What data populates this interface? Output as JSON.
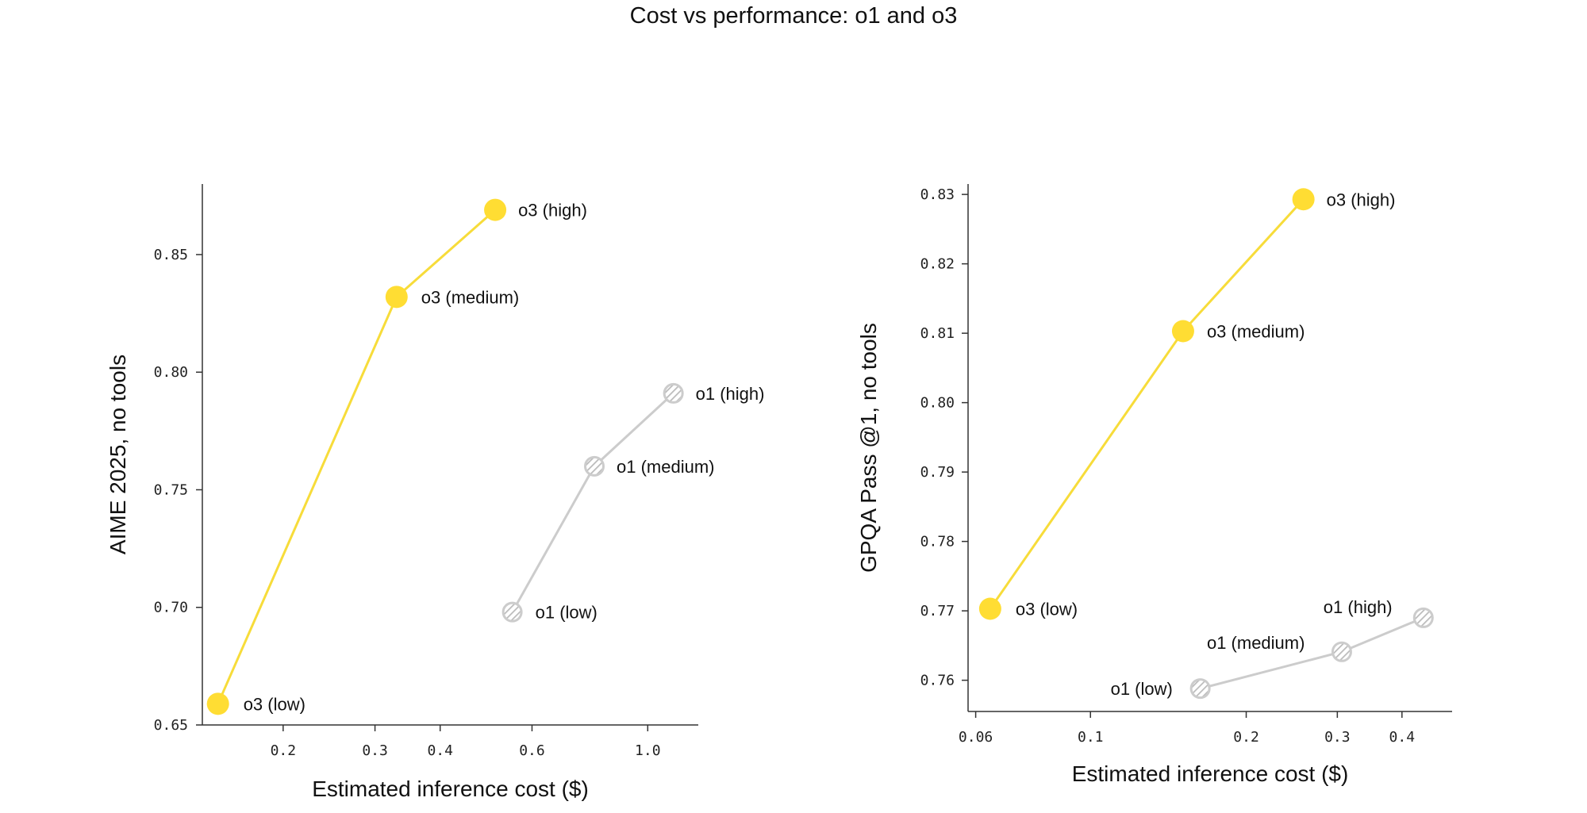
{
  "title": "Cost vs performance: o1 and o3",
  "colors": {
    "o3": "#FFDD33",
    "o3_line": "#F7DC3A",
    "o1": "#CCCCCC",
    "axis": "#333333",
    "text": "#111111"
  },
  "chart_data": [
    {
      "type": "line",
      "xlabel": "Estimated inference cost ($)",
      "ylabel": "AIME 2025, no tools",
      "xscale": "log",
      "xlim": [
        0.14,
        1.25
      ],
      "ylim": [
        0.65,
        0.88
      ],
      "xticks": [
        0.2,
        0.3,
        0.4,
        0.6,
        1.0
      ],
      "xtick_labels": [
        "0.2",
        "0.3",
        "0.4",
        "0.6",
        "1.0"
      ],
      "yticks": [
        0.65,
        0.7,
        0.75,
        0.8,
        0.85
      ],
      "ytick_labels": [
        "0.65",
        "0.70",
        "0.75",
        "0.80",
        "0.85"
      ],
      "series": [
        {
          "key": "o3",
          "points": [
            {
              "x": 0.15,
              "y": 0.659,
              "label": "o3 (low)"
            },
            {
              "x": 0.33,
              "y": 0.832,
              "label": "o3 (medium)"
            },
            {
              "x": 0.51,
              "y": 0.869,
              "label": "o3 (high)"
            }
          ]
        },
        {
          "key": "o1",
          "points": [
            {
              "x": 0.55,
              "y": 0.698,
              "label": "o1 (low)"
            },
            {
              "x": 0.79,
              "y": 0.76,
              "label": "o1 (medium)"
            },
            {
              "x": 1.12,
              "y": 0.791,
              "label": "o1 (high)"
            }
          ]
        }
      ]
    },
    {
      "type": "line",
      "xlabel": "Estimated inference cost ($)",
      "ylabel": "GPQA Pass @1, no tools",
      "xscale": "log",
      "xlim": [
        0.058,
        0.5
      ],
      "ylim": [
        0.7555,
        0.8315
      ],
      "xticks": [
        0.06,
        0.1,
        0.2,
        0.3,
        0.4
      ],
      "xtick_labels": [
        "0.06",
        "0.1",
        "0.2",
        "0.3",
        "0.4"
      ],
      "yticks": [
        0.76,
        0.77,
        0.78,
        0.79,
        0.8,
        0.81,
        0.82,
        0.83
      ],
      "ytick_labels": [
        "0.76",
        "0.77",
        "0.78",
        "0.79",
        "0.80",
        "0.81",
        "0.82",
        "0.83"
      ],
      "series": [
        {
          "key": "o3",
          "points": [
            {
              "x": 0.064,
              "y": 0.7703,
              "label": "o3 (low)"
            },
            {
              "x": 0.151,
              "y": 0.8103,
              "label": "o3 (medium)"
            },
            {
              "x": 0.258,
              "y": 0.8293,
              "label": "o3 (high)"
            }
          ]
        },
        {
          "key": "o1",
          "points": [
            {
              "x": 0.163,
              "y": 0.7588,
              "label": "o1 (low)"
            },
            {
              "x": 0.306,
              "y": 0.7641,
              "label": "o1 (medium)"
            },
            {
              "x": 0.44,
              "y": 0.769,
              "label": "o1 (high)"
            }
          ]
        }
      ]
    }
  ]
}
